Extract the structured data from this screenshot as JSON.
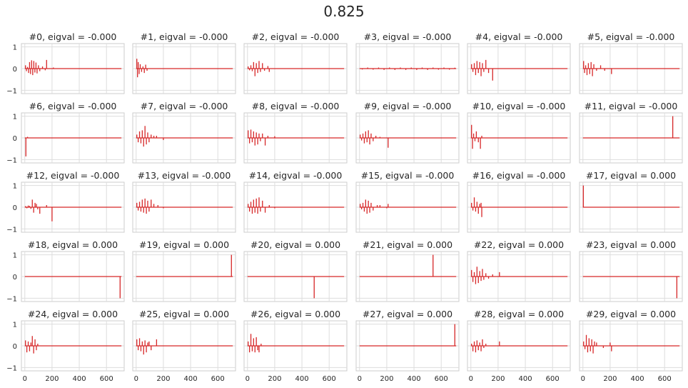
{
  "figure": {
    "suptitle": "0.825"
  },
  "chart_data": {
    "type": "line",
    "color": "#d62728",
    "grid": true,
    "xlim": [
      -25,
      730
    ],
    "ylim": [
      -1.15,
      1.15
    ],
    "xticks": [
      0,
      200,
      400,
      600
    ],
    "yticks": [
      -1,
      0,
      1
    ],
    "xtick_labels": [
      "0",
      "200",
      "400",
      "600"
    ],
    "ytick_labels": [
      "−1",
      "0",
      "1"
    ],
    "subplots": [
      {
        "title": "#0, eigval = -0.000",
        "spikes": [
          [
            5,
            0.15
          ],
          [
            12,
            -0.12
          ],
          [
            20,
            0.08
          ],
          [
            28,
            -0.2
          ],
          [
            35,
            0.3
          ],
          [
            42,
            -0.25
          ],
          [
            50,
            0.38
          ],
          [
            58,
            -0.3
          ],
          [
            66,
            0.35
          ],
          [
            74,
            -0.18
          ],
          [
            82,
            0.28
          ],
          [
            90,
            -0.22
          ],
          [
            100,
            0.15
          ],
          [
            110,
            -0.12
          ],
          [
            130,
            0.1
          ],
          [
            150,
            -0.08
          ],
          [
            160,
            0.4
          ],
          [
            210,
            0.05
          ]
        ]
      },
      {
        "title": "#1, eigval = -0.000",
        "spikes": [
          [
            5,
            0.45
          ],
          [
            10,
            -0.4
          ],
          [
            15,
            0.3
          ],
          [
            22,
            -0.25
          ],
          [
            30,
            0.2
          ],
          [
            40,
            -0.15
          ],
          [
            50,
            0.1
          ],
          [
            60,
            -0.2
          ],
          [
            70,
            0.18
          ],
          [
            80,
            -0.1
          ]
        ]
      },
      {
        "title": "#2, eigval = -0.000",
        "spikes": [
          [
            5,
            0.1
          ],
          [
            15,
            -0.08
          ],
          [
            25,
            0.15
          ],
          [
            35,
            -0.12
          ],
          [
            45,
            0.3
          ],
          [
            55,
            -0.35
          ],
          [
            65,
            0.25
          ],
          [
            75,
            -0.2
          ],
          [
            85,
            0.35
          ],
          [
            95,
            -0.15
          ],
          [
            110,
            0.25
          ],
          [
            125,
            -0.1
          ],
          [
            150,
            0.12
          ],
          [
            160,
            -0.15
          ]
        ]
      },
      {
        "title": "#3, eigval = -0.000",
        "spikes": [
          [
            20,
            -0.04
          ],
          [
            60,
            0.05
          ],
          [
            100,
            -0.05
          ],
          [
            140,
            0.05
          ],
          [
            180,
            -0.06
          ],
          [
            220,
            0.05
          ],
          [
            260,
            -0.06
          ],
          [
            300,
            0.05
          ],
          [
            340,
            -0.06
          ],
          [
            380,
            0.05
          ],
          [
            420,
            -0.06
          ],
          [
            460,
            0.05
          ],
          [
            500,
            -0.06
          ],
          [
            540,
            0.05
          ],
          [
            580,
            -0.05
          ],
          [
            620,
            0.05
          ],
          [
            660,
            -0.05
          ],
          [
            700,
            0.04
          ]
        ]
      },
      {
        "title": "#4, eigval = -0.000",
        "spikes": [
          [
            5,
            0.2
          ],
          [
            15,
            -0.15
          ],
          [
            25,
            0.25
          ],
          [
            35,
            -0.3
          ],
          [
            45,
            0.35
          ],
          [
            55,
            -0.2
          ],
          [
            65,
            0.3
          ],
          [
            75,
            -0.35
          ],
          [
            85,
            0.25
          ],
          [
            95,
            -0.15
          ],
          [
            110,
            0.4
          ],
          [
            130,
            -0.2
          ],
          [
            160,
            -0.55
          ]
        ]
      },
      {
        "title": "#5, eigval = -0.000",
        "spikes": [
          [
            5,
            0.35
          ],
          [
            12,
            -0.2
          ],
          [
            20,
            0.15
          ],
          [
            30,
            -0.3
          ],
          [
            40,
            0.25
          ],
          [
            50,
            -0.25
          ],
          [
            60,
            0.3
          ],
          [
            70,
            -0.35
          ],
          [
            80,
            0.2
          ],
          [
            100,
            -0.1
          ],
          [
            130,
            0.15
          ],
          [
            160,
            -0.1
          ],
          [
            210,
            -0.25
          ]
        ]
      },
      {
        "title": "#6, eigval = -0.000",
        "spikes": [
          [
            8,
            -0.85
          ],
          [
            20,
            0.05
          ]
        ]
      },
      {
        "title": "#7, eigval = -0.000",
        "spikes": [
          [
            5,
            0.15
          ],
          [
            15,
            -0.2
          ],
          [
            25,
            0.3
          ],
          [
            35,
            -0.25
          ],
          [
            45,
            0.35
          ],
          [
            55,
            -0.4
          ],
          [
            65,
            0.55
          ],
          [
            75,
            -0.3
          ],
          [
            85,
            0.25
          ],
          [
            95,
            -0.2
          ],
          [
            110,
            0.15
          ],
          [
            130,
            0.1
          ],
          [
            150,
            0.1
          ],
          [
            200,
            -0.1
          ]
        ]
      },
      {
        "title": "#8, eigval = -0.000",
        "spikes": [
          [
            5,
            0.35
          ],
          [
            15,
            -0.25
          ],
          [
            25,
            0.38
          ],
          [
            35,
            -0.2
          ],
          [
            45,
            0.3
          ],
          [
            55,
            -0.35
          ],
          [
            65,
            0.25
          ],
          [
            75,
            -0.3
          ],
          [
            85,
            0.2
          ],
          [
            95,
            -0.15
          ],
          [
            110,
            0.2
          ],
          [
            130,
            -0.35
          ],
          [
            150,
            0.1
          ],
          [
            200,
            0.08
          ]
        ]
      },
      {
        "title": "#9, eigval = -0.000",
        "spikes": [
          [
            5,
            0.15
          ],
          [
            15,
            -0.12
          ],
          [
            25,
            0.2
          ],
          [
            35,
            -0.25
          ],
          [
            45,
            0.3
          ],
          [
            55,
            -0.2
          ],
          [
            65,
            0.35
          ],
          [
            75,
            -0.3
          ],
          [
            85,
            0.2
          ],
          [
            100,
            -0.15
          ],
          [
            120,
            0.1
          ],
          [
            150,
            0.05
          ],
          [
            210,
            -0.45
          ]
        ]
      },
      {
        "title": "#10, eigval = -0.000",
        "spikes": [
          [
            5,
            0.6
          ],
          [
            12,
            -0.5
          ],
          [
            20,
            0.2
          ],
          [
            30,
            -0.15
          ],
          [
            40,
            0.3
          ],
          [
            55,
            -0.2
          ],
          [
            70,
            -0.5
          ],
          [
            80,
            0.1
          ]
        ]
      },
      {
        "title": "#11, eigval = -0.000",
        "spikes": [
          [
            660,
            1.0
          ]
        ]
      },
      {
        "title": "#12, eigval = -0.000",
        "spikes": [
          [
            5,
            0.05
          ],
          [
            15,
            -0.05
          ],
          [
            25,
            0.08
          ],
          [
            35,
            0.06
          ],
          [
            45,
            -0.08
          ],
          [
            55,
            0.35
          ],
          [
            65,
            -0.25
          ],
          [
            75,
            0.2
          ],
          [
            85,
            0.15
          ],
          [
            95,
            -0.1
          ],
          [
            110,
            -0.3
          ],
          [
            160,
            0.1
          ],
          [
            200,
            -0.65
          ]
        ]
      },
      {
        "title": "#13, eigval = -0.000",
        "spikes": [
          [
            5,
            0.2
          ],
          [
            15,
            -0.15
          ],
          [
            25,
            0.25
          ],
          [
            35,
            -0.2
          ],
          [
            45,
            0.35
          ],
          [
            55,
            -0.25
          ],
          [
            65,
            0.4
          ],
          [
            75,
            -0.3
          ],
          [
            85,
            0.3
          ],
          [
            95,
            -0.2
          ],
          [
            110,
            0.35
          ],
          [
            130,
            0.15
          ],
          [
            160,
            0.1
          ],
          [
            200,
            -0.05
          ]
        ]
      },
      {
        "title": "#14, eigval = -0.000",
        "spikes": [
          [
            5,
            0.15
          ],
          [
            15,
            -0.2
          ],
          [
            25,
            0.25
          ],
          [
            35,
            -0.3
          ],
          [
            45,
            0.35
          ],
          [
            55,
            -0.25
          ],
          [
            65,
            0.4
          ],
          [
            75,
            -0.3
          ],
          [
            85,
            0.45
          ],
          [
            95,
            -0.2
          ],
          [
            110,
            0.3
          ],
          [
            130,
            -0.25
          ],
          [
            160,
            0.1
          ],
          [
            200,
            -0.05
          ]
        ]
      },
      {
        "title": "#15, eigval = -0.000",
        "spikes": [
          [
            5,
            0.15
          ],
          [
            15,
            -0.1
          ],
          [
            25,
            0.2
          ],
          [
            35,
            -0.2
          ],
          [
            45,
            0.35
          ],
          [
            55,
            -0.3
          ],
          [
            65,
            0.3
          ],
          [
            75,
            -0.25
          ],
          [
            85,
            0.2
          ],
          [
            100,
            -0.15
          ],
          [
            130,
            0.1
          ],
          [
            150,
            0.1
          ],
          [
            200,
            -0.05
          ],
          [
            210,
            0.15
          ]
        ]
      },
      {
        "title": "#16, eigval = -0.000",
        "spikes": [
          [
            5,
            0.2
          ],
          [
            15,
            -0.15
          ],
          [
            25,
            0.45
          ],
          [
            35,
            -0.2
          ],
          [
            45,
            0.25
          ],
          [
            55,
            -0.3
          ],
          [
            65,
            0.15
          ],
          [
            75,
            0.2
          ],
          [
            80,
            -0.45
          ]
        ]
      },
      {
        "title": "#17, eigval = 0.000",
        "spikes": [
          [
            3,
            1.0
          ]
        ]
      },
      {
        "title": "#18, eigval = 0.000",
        "spikes": [
          [
            700,
            -1.0
          ]
        ]
      },
      {
        "title": "#19, eigval = 0.000",
        "spikes": [
          [
            700,
            1.0
          ]
        ]
      },
      {
        "title": "#20, eigval = 0.000",
        "spikes": [
          [
            490,
            -1.0
          ]
        ]
      },
      {
        "title": "#21, eigval = 0.000",
        "spikes": [
          [
            540,
            1.0
          ]
        ]
      },
      {
        "title": "#22, eigval = 0.000",
        "spikes": [
          [
            5,
            0.3
          ],
          [
            15,
            -0.25
          ],
          [
            25,
            0.2
          ],
          [
            35,
            -0.35
          ],
          [
            45,
            0.45
          ],
          [
            55,
            -0.3
          ],
          [
            65,
            0.25
          ],
          [
            75,
            -0.2
          ],
          [
            85,
            0.35
          ],
          [
            95,
            -0.15
          ],
          [
            110,
            0.15
          ],
          [
            130,
            -0.1
          ],
          [
            160,
            0.1
          ],
          [
            210,
            0.2
          ]
        ]
      },
      {
        "title": "#23, eigval = 0.000",
        "spikes": [
          [
            690,
            -1.0
          ]
        ]
      },
      {
        "title": "#24, eigval = 0.000",
        "spikes": [
          [
            5,
            0.25
          ],
          [
            15,
            -0.3
          ],
          [
            25,
            0.2
          ],
          [
            35,
            -0.25
          ],
          [
            45,
            0.15
          ],
          [
            55,
            0.45
          ],
          [
            65,
            -0.35
          ],
          [
            75,
            0.3
          ],
          [
            85,
            -0.2
          ],
          [
            95,
            0.1
          ]
        ]
      },
      {
        "title": "#25, eigval = 0.000",
        "spikes": [
          [
            5,
            0.3
          ],
          [
            15,
            -0.2
          ],
          [
            25,
            0.35
          ],
          [
            35,
            -0.25
          ],
          [
            45,
            0.2
          ],
          [
            55,
            -0.4
          ],
          [
            65,
            0.25
          ],
          [
            75,
            -0.3
          ],
          [
            85,
            0.15
          ],
          [
            95,
            0.2
          ],
          [
            110,
            -0.2
          ],
          [
            150,
            0.3
          ]
        ]
      },
      {
        "title": "#26, eigval = 0.000",
        "spikes": [
          [
            5,
            0.2
          ],
          [
            15,
            -0.3
          ],
          [
            25,
            0.55
          ],
          [
            35,
            -0.25
          ],
          [
            45,
            0.35
          ],
          [
            55,
            -0.3
          ],
          [
            65,
            0.4
          ],
          [
            75,
            -0.2
          ],
          [
            85,
            -0.3
          ],
          [
            100,
            0.1
          ]
        ]
      },
      {
        "title": "#27, eigval = 0.000",
        "spikes": [
          [
            700,
            1.0
          ]
        ]
      },
      {
        "title": "#28, eigval = 0.000",
        "spikes": [
          [
            5,
            0.1
          ],
          [
            15,
            -0.25
          ],
          [
            25,
            0.2
          ],
          [
            35,
            -0.3
          ],
          [
            45,
            0.25
          ],
          [
            55,
            -0.2
          ],
          [
            65,
            0.15
          ],
          [
            75,
            -0.25
          ],
          [
            85,
            0.3
          ],
          [
            95,
            -0.1
          ],
          [
            110,
            0.1
          ],
          [
            210,
            0.2
          ]
        ]
      },
      {
        "title": "#29, eigval = 0.000",
        "spikes": [
          [
            5,
            0.2
          ],
          [
            15,
            -0.15
          ],
          [
            25,
            0.5
          ],
          [
            35,
            -0.3
          ],
          [
            45,
            0.35
          ],
          [
            55,
            -0.25
          ],
          [
            65,
            0.3
          ],
          [
            75,
            -0.35
          ],
          [
            85,
            0.2
          ],
          [
            100,
            0.15
          ],
          [
            150,
            -0.1
          ],
          [
            200,
            0.15
          ],
          [
            210,
            -0.25
          ]
        ]
      }
    ]
  }
}
